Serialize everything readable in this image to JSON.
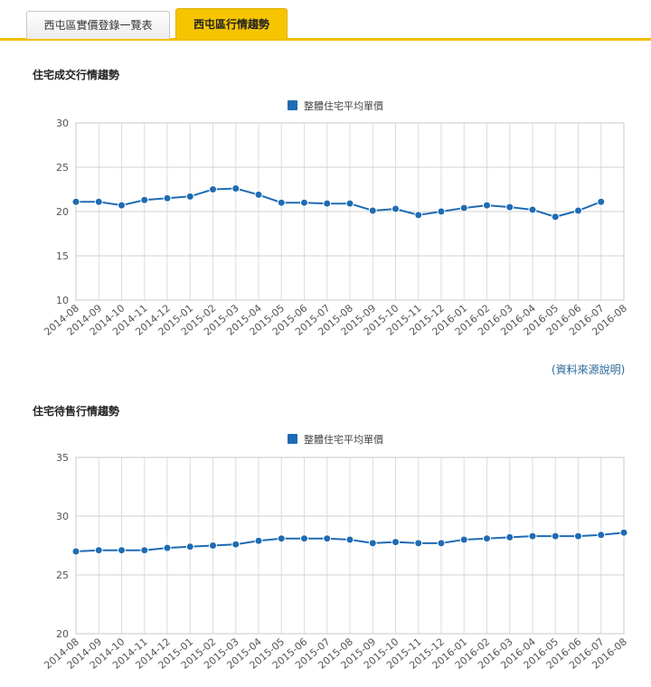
{
  "tabs": [
    {
      "label": "西屯區實價登錄一覽表",
      "active": false
    },
    {
      "label": "西屯區行情趨勢",
      "active": true
    }
  ],
  "source_link": "(資料來源說明)",
  "colors": {
    "series": "#1f6bb4",
    "tab_accent": "#f7c400"
  },
  "chart_data": [
    {
      "type": "line",
      "title": "住宅成交行情趨勢",
      "legend": "整體住宅平均單價",
      "categories": [
        "2014-08",
        "2014-09",
        "2014-10",
        "2014-11",
        "2014-12",
        "2015-01",
        "2015-02",
        "2015-03",
        "2015-04",
        "2015-05",
        "2015-06",
        "2015-07",
        "2015-08",
        "2015-09",
        "2015-10",
        "2015-11",
        "2015-12",
        "2016-01",
        "2016-02",
        "2016-03",
        "2016-04",
        "2016-05",
        "2016-06",
        "2016-07",
        "2016-08"
      ],
      "series": [
        {
          "name": "整體住宅平均單價",
          "values": [
            21.1,
            21.1,
            20.7,
            21.3,
            21.5,
            21.7,
            22.5,
            22.6,
            21.9,
            21.0,
            21.0,
            20.9,
            20.9,
            20.1,
            20.3,
            19.6,
            20.0,
            20.4,
            20.7,
            20.5,
            20.2,
            19.4,
            20.1,
            21.1,
            null
          ]
        }
      ],
      "ylim": [
        10,
        30
      ],
      "yticks": [
        10,
        15,
        20,
        25,
        30
      ],
      "xlabel": "",
      "ylabel": ""
    },
    {
      "type": "line",
      "title": "住宅待售行情趨勢",
      "legend": "整體住宅平均單價",
      "categories": [
        "2014-08",
        "2014-09",
        "2014-10",
        "2014-11",
        "2014-12",
        "2015-01",
        "2015-02",
        "2015-03",
        "2015-04",
        "2015-05",
        "2015-06",
        "2015-07",
        "2015-08",
        "2015-09",
        "2015-10",
        "2015-11",
        "2015-12",
        "2016-01",
        "2016-02",
        "2016-03",
        "2016-04",
        "2016-05",
        "2016-06",
        "2016-07",
        "2016-08"
      ],
      "series": [
        {
          "name": "整體住宅平均單價",
          "values": [
            27.0,
            27.1,
            27.1,
            27.1,
            27.3,
            27.4,
            27.5,
            27.6,
            27.9,
            28.1,
            28.1,
            28.1,
            28.0,
            27.7,
            27.8,
            27.7,
            27.7,
            28.0,
            28.1,
            28.2,
            28.3,
            28.3,
            28.3,
            28.4,
            28.6
          ]
        }
      ],
      "ylim": [
        20,
        35
      ],
      "yticks": [
        20,
        25,
        30,
        35
      ],
      "xlabel": "",
      "ylabel": ""
    }
  ]
}
